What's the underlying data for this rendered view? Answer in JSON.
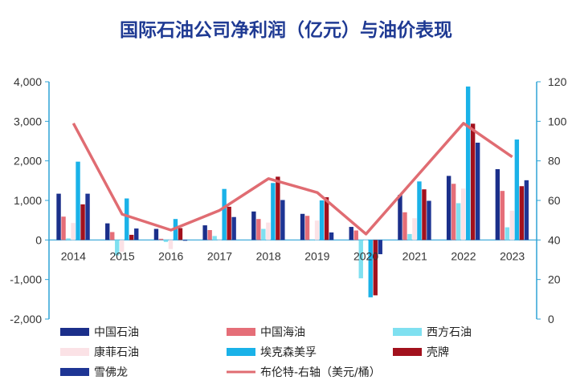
{
  "chart_data": {
    "type": "bar",
    "title": "国际石油公司净利润（亿元）与油价表现",
    "categories": [
      "2014",
      "2015",
      "2016",
      "2017",
      "2018",
      "2019",
      "2020",
      "2021",
      "2022",
      "2023"
    ],
    "y_left": {
      "ticks": [
        "-2,000",
        "-1,000",
        "0",
        "1,000",
        "2,000",
        "3,000",
        "4,000"
      ],
      "ylim": [
        -2000,
        4000
      ]
    },
    "y_right": {
      "ticks": [
        "0",
        "20",
        "40",
        "60",
        "80",
        "100",
        "120"
      ],
      "ylim": [
        0,
        120
      ]
    },
    "series": [
      {
        "name": "中国石油",
        "axis": "left",
        "color": "#1b2f8a",
        "values": [
          1170,
          420,
          280,
          370,
          720,
          660,
          330,
          1140,
          1620,
          1790
        ]
      },
      {
        "name": "中国海油",
        "axis": "left",
        "color": "#e56e78",
        "values": [
          590,
          200,
          30,
          250,
          530,
          610,
          240,
          700,
          1420,
          1240
        ]
      },
      {
        "name": "西方石油",
        "axis": "left",
        "color": "#7fe0f0",
        "values": [
          40,
          -390,
          -50,
          100,
          280,
          0,
          -970,
          150,
          930,
          320
        ]
      },
      {
        "name": "康菲石油",
        "axis": "left",
        "color": "#fbe2e6",
        "values": [
          430,
          -300,
          -230,
          0,
          440,
          490,
          0,
          550,
          1300,
          740
        ]
      },
      {
        "name": "埃克森美孚",
        "axis": "left",
        "color": "#1ab2e8",
        "values": [
          1980,
          1050,
          530,
          1290,
          1440,
          1000,
          -1450,
          1480,
          3880,
          2540
        ]
      },
      {
        "name": "壳牌",
        "axis": "left",
        "color": "#a2111d",
        "values": [
          900,
          130,
          300,
          840,
          1600,
          1080,
          -1400,
          1280,
          2940,
          1360
        ]
      },
      {
        "name": "雪佛龙",
        "axis": "left",
        "color": "#1e3594",
        "values": [
          1170,
          290,
          -20,
          580,
          1010,
          190,
          -360,
          990,
          2460,
          1510
        ]
      },
      {
        "name": "布伦特-右轴（美元/桶）",
        "axis": "right",
        "type": "line",
        "color": "#e06c72",
        "values": [
          99,
          53,
          45,
          55,
          71,
          64,
          43,
          71,
          99,
          82
        ]
      }
    ],
    "legend": [
      {
        "label": "中国石油",
        "color": "#1b2f8a",
        "kind": "bar"
      },
      {
        "label": "中国海油",
        "color": "#e56e78",
        "kind": "bar"
      },
      {
        "label": "西方石油",
        "color": "#7fe0f0",
        "kind": "bar"
      },
      {
        "label": "康菲石油",
        "color": "#fbe2e6",
        "kind": "bar"
      },
      {
        "label": "埃克森美孚",
        "color": "#1ab2e8",
        "kind": "bar"
      },
      {
        "label": "壳牌",
        "color": "#a2111d",
        "kind": "bar"
      },
      {
        "label": "雪佛龙",
        "color": "#1e3594",
        "kind": "bar"
      },
      {
        "label": "布伦特-右轴（美元/桶）",
        "color": "#e06c72",
        "kind": "line"
      }
    ],
    "legend_position": "bottom",
    "grid": false,
    "colors": {
      "axis": "#2ea3d6",
      "title": "#1f3a93"
    }
  }
}
